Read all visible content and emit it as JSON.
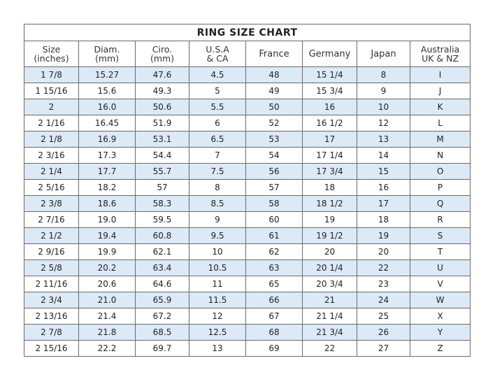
{
  "title": "RING SIZE CHART",
  "headers": [
    [
      "Size",
      "(inches)"
    ],
    [
      "Diam.",
      "(mm)"
    ],
    [
      "Ciro.",
      "(mm)"
    ],
    [
      "U.S.A",
      "& CA"
    ],
    [
      "France",
      ""
    ],
    [
      "Germany",
      ""
    ],
    [
      "Japan",
      ""
    ],
    [
      "Australia",
      "UK & NZ"
    ]
  ],
  "rows": [
    [
      "1 7/8",
      "15.27",
      "47.6",
      "4.5",
      "48",
      "15 1/4",
      "8",
      "I"
    ],
    [
      "1 15/16",
      "15.6",
      "49.3",
      "5",
      "49",
      "15 3/4",
      "9",
      "J"
    ],
    [
      "2",
      "16.0",
      "50.6",
      "5.5",
      "50",
      "16",
      "10",
      "K"
    ],
    [
      "2 1/16",
      "16.45",
      "51.9",
      "6",
      "52",
      "16 1/2",
      "12",
      "L"
    ],
    [
      "2 1/8",
      "16.9",
      "53.1",
      "6.5",
      "53",
      "17",
      "13",
      "M"
    ],
    [
      "2 3/16",
      "17.3",
      "54.4",
      "7",
      "54",
      "17 1/4",
      "14",
      "N"
    ],
    [
      "2 1/4",
      "17.7",
      "55.7",
      "7.5",
      "56",
      "17 3/4",
      "15",
      "O"
    ],
    [
      "2 5/16",
      "18.2",
      "57",
      "8",
      "57",
      "18",
      "16",
      "P"
    ],
    [
      "2 3/8",
      "18.6",
      "58.3",
      "8.5",
      "58",
      "18 1/2",
      "17",
      "Q"
    ],
    [
      "2 7/16",
      "19.0",
      "59.5",
      "9",
      "60",
      "19",
      "18",
      "R"
    ],
    [
      "2 1/2",
      "19.4",
      "60.8",
      "9.5",
      "61",
      "19 1/2",
      "19",
      "S"
    ],
    [
      "2 9/16",
      "19.9",
      "62.1",
      "10",
      "62",
      "20",
      "20",
      "T"
    ],
    [
      "2 5/8",
      "20.2",
      "63.4",
      "10.5",
      "63",
      "20 1/4",
      "22",
      "U"
    ],
    [
      "2 11/16",
      "20.6",
      "64.6",
      "11",
      "65",
      "20 3/4",
      "23",
      "V"
    ],
    [
      "2 3/4",
      "21.0",
      "65.9",
      "11.5",
      "66",
      "21",
      "24",
      "W"
    ],
    [
      "2 13/16",
      "21.4",
      "67.2",
      "12",
      "67",
      "21 1/4",
      "25",
      "X"
    ],
    [
      "2 7/8",
      "21.8",
      "68.5",
      "12.5",
      "68",
      "21 3/4",
      "26",
      "Y"
    ],
    [
      "2 15/16",
      "22.2",
      "69.7",
      "13",
      "69",
      "22",
      "27",
      "Z"
    ]
  ],
  "colors": {
    "alt_row": "#dce9f7",
    "border": "#6a6a6a"
  }
}
